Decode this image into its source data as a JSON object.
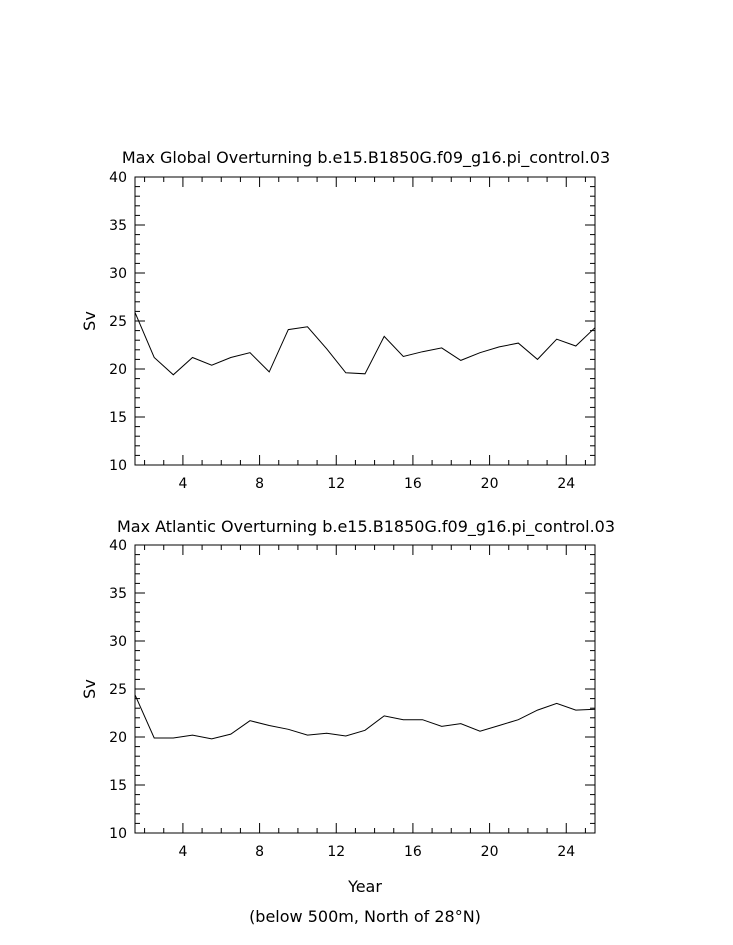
{
  "chart_data": [
    {
      "type": "line",
      "title": "Max Global Overturning b.e15.B1850G.f09_g16.pi_control.03",
      "xlabel": "",
      "ylabel": "Sv",
      "xlim": [
        1.5,
        25.5
      ],
      "ylim": [
        10,
        40
      ],
      "xticks": [
        4,
        8,
        12,
        16,
        20,
        24
      ],
      "yticks": [
        10,
        15,
        20,
        25,
        30,
        35,
        40
      ],
      "x": [
        1.5,
        2.5,
        3.5,
        4.5,
        5.5,
        6.5,
        7.5,
        8.5,
        9.5,
        10.5,
        11.5,
        12.5,
        13.5,
        14.5,
        15.5,
        16.5,
        17.5,
        18.5,
        19.5,
        20.5,
        21.5,
        22.5,
        23.5,
        24.5,
        25.5
      ],
      "series": [
        {
          "values": [
            25.9,
            21.2,
            19.4,
            21.2,
            20.4,
            21.2,
            21.7,
            19.7,
            24.1,
            24.4,
            22.1,
            19.6,
            19.5,
            23.4,
            21.3,
            21.8,
            22.2,
            20.9,
            21.7,
            22.3,
            22.7,
            21.0,
            23.1,
            22.4,
            24.3
          ]
        }
      ],
      "grid": false
    },
    {
      "type": "line",
      "title": "Max Atlantic Overturning b.e15.B1850G.f09_g16.pi_control.03",
      "xlabel": "Year",
      "ylabel": "Sv",
      "xlim": [
        1.5,
        25.5
      ],
      "ylim": [
        10,
        40
      ],
      "xticks": [
        4,
        8,
        12,
        16,
        20,
        24
      ],
      "yticks": [
        10,
        15,
        20,
        25,
        30,
        35,
        40
      ],
      "x": [
        1.5,
        2.5,
        3.5,
        4.5,
        5.5,
        6.5,
        7.5,
        8.5,
        9.5,
        10.5,
        11.5,
        12.5,
        13.5,
        14.5,
        15.5,
        16.5,
        17.5,
        18.5,
        19.5,
        20.5,
        21.5,
        22.5,
        23.5,
        24.5,
        25.5
      ],
      "series": [
        {
          "values": [
            24.4,
            19.9,
            19.9,
            20.2,
            19.8,
            20.3,
            21.7,
            21.2,
            20.8,
            20.2,
            20.4,
            20.1,
            20.7,
            22.2,
            21.8,
            21.8,
            21.1,
            21.4,
            20.6,
            21.2,
            21.8,
            22.8,
            23.5,
            22.8,
            22.9
          ]
        }
      ],
      "grid": false
    }
  ],
  "footnote": "(below 500m, North of 28°N)"
}
